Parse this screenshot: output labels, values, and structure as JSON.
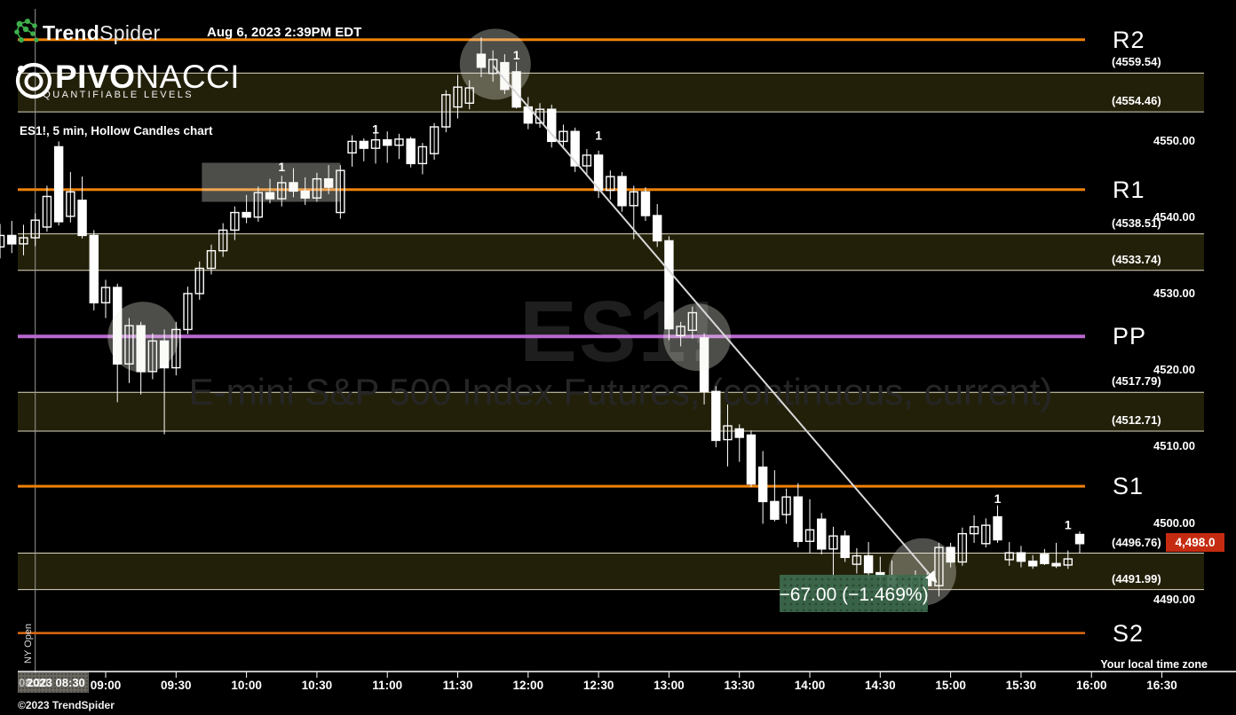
{
  "header": {
    "brand_bold": "Trend",
    "brand_light": "Spider",
    "datetime": "Aug 6, 2023 2:39PM EDT",
    "pivonacci_bold": "PIVO",
    "pivonacci_light": "NACCI",
    "pivonacci_tagline": "QUANTIFIABLE LEVELS",
    "symbol_label": "ES1!, 5 min, Hollow Candles chart"
  },
  "watermark": {
    "line1": "ES1!",
    "line2": "E-mini S&P 500 Index Futures, (continuous, current)"
  },
  "footer": {
    "copyright": "©2023 TrendSpider",
    "timezone_note": "Your local time zone",
    "crosshair_date": "2023 08:30",
    "crosshair_ghost": "08:30",
    "ny_open_label": "NY Open"
  },
  "colors": {
    "background": "#000000",
    "candle": "#ffffff",
    "pivot_orange": "#ef8109",
    "pivot_orange_s2": "#e06a10",
    "pivot_purple": "#b968cf",
    "band_fill": "#23200a",
    "band_edge": "#e8e2cc",
    "badge_red": "#c52b10",
    "annotation_green": "#3d6b4d",
    "brand_green": "#3faf4c",
    "trendline": "#d8d8d8",
    "highlight": "rgba(238,238,230,0.32)"
  },
  "chart_data": {
    "type": "candlestick-hollow",
    "title": "ES1!, 5 min, Hollow Candles chart",
    "symbol": "ES1!",
    "interval": "5 min",
    "last_price": "4,498.0",
    "change_label": "−67.00 (−1.469%)",
    "x_axis": {
      "labels": [
        "08:30",
        "09:00",
        "09:30",
        "10:00",
        "10:30",
        "11:00",
        "11:30",
        "12:00",
        "12:30",
        "13:00",
        "13:30",
        "14:00",
        "14:30",
        "15:00",
        "15:30",
        "16:00",
        "16:30"
      ],
      "note": "Your local time zone"
    },
    "y_axis": {
      "labels": [
        "4550.00",
        "4540.00",
        "4530.00",
        "4520.00",
        "4510.00",
        "4500.00",
        "4490.00"
      ],
      "range": [
        4480,
        4570
      ],
      "grid": false
    },
    "pivots": [
      {
        "name": "R2",
        "line_price": 4563.9,
        "zone": [
          4554.46,
          4559.54
        ],
        "zone_labels": [
          "(4559.54)",
          "(4554.46)"
        ],
        "color": "#ef8109",
        "width": 3
      },
      {
        "name": "R1",
        "line_price": 4544.3,
        "zone": [
          4533.74,
          4538.51
        ],
        "zone_labels": [
          "(4538.51)",
          "(4533.74)"
        ],
        "color": "#ef8109",
        "width": 3
      },
      {
        "name": "PP",
        "line_price": 4525.1,
        "zone": [
          4512.71,
          4517.79
        ],
        "zone_labels": [
          "(4517.79)",
          "(4512.71)"
        ],
        "color": "#b968cf",
        "width": 4
      },
      {
        "name": "S1",
        "line_price": 4505.5,
        "zone": [
          4491.99,
          4496.76
        ],
        "zone_labels": [
          "(4496.76)",
          "(4491.99)"
        ],
        "color": "#ef8109",
        "width": 3
      },
      {
        "name": "S2",
        "line_price": 4486.3,
        "zone": null,
        "zone_labels": [],
        "color": "#e06a10",
        "width": 2.5
      }
    ],
    "candles": [
      [
        "08:15",
        4536.8,
        4539.8,
        4535.3,
        4538.3
      ],
      [
        "08:20",
        4538.3,
        4540.2,
        4536.0,
        4537.2
      ],
      [
        "08:25",
        4537.2,
        4539.7,
        4535.7,
        4538.0
      ],
      [
        "08:30",
        4538.0,
        4541.2,
        4536.9,
        4540.3
      ],
      [
        "08:35",
        4539.4,
        4544.8,
        4538.8,
        4543.4
      ],
      [
        "08:40",
        4549.9,
        4550.6,
        4539.6,
        4540.1
      ],
      [
        "08:45",
        4540.8,
        4546.6,
        4540.0,
        4544.0
      ],
      [
        "08:50",
        4542.9,
        4546.0,
        4537.9,
        4538.3
      ],
      [
        "08:55",
        4538.3,
        4539.0,
        4528.5,
        4529.5
      ],
      [
        "09:00",
        4529.5,
        4532.5,
        4527.5,
        4531.5
      ],
      [
        "09:05",
        4531.5,
        4532.0,
        4516.5,
        4521.5
      ],
      [
        "09:10",
        4521.5,
        4527.5,
        4519.0,
        4526.5
      ],
      [
        "09:15",
        4526.5,
        4527.0,
        4517.5,
        4520.5
      ],
      [
        "09:20",
        4520.5,
        4525.5,
        4519.5,
        4524.5
      ],
      [
        "09:25",
        4524.5,
        4526.0,
        4512.3,
        4521.0
      ],
      [
        "09:30",
        4521.0,
        4527.0,
        4520.0,
        4526.0
      ],
      [
        "09:35",
        4526.0,
        4531.6,
        4525.4,
        4530.7
      ],
      [
        "09:40",
        4530.7,
        4534.9,
        4529.9,
        4534.0
      ],
      [
        "09:45",
        4534.0,
        4537.1,
        4533.2,
        4536.3
      ],
      [
        "09:50",
        4536.3,
        4539.9,
        4535.5,
        4539.0
      ],
      [
        "09:55",
        4539.0,
        4542.1,
        4537.7,
        4541.3
      ],
      [
        "10:00",
        4541.3,
        4543.6,
        4539.9,
        4540.7
      ],
      [
        "10:05",
        4540.7,
        4544.7,
        4540.1,
        4543.9
      ],
      [
        "10:10",
        4543.9,
        4545.7,
        4542.5,
        4543.1
      ],
      [
        "10:15",
        4543.1,
        4546.1,
        4542.1,
        4545.2
      ],
      [
        "10:20",
        4545.2,
        4547.1,
        4543.3,
        4544.1
      ],
      [
        "10:25",
        4544.1,
        4545.9,
        4542.3,
        4543.2
      ],
      [
        "10:30",
        4543.2,
        4546.5,
        4542.7,
        4545.7
      ],
      [
        "10:35",
        4545.7,
        4547.5,
        4543.7,
        4544.6
      ],
      [
        "10:40",
        4541.3,
        4547.5,
        4540.5,
        4546.8
      ],
      [
        "10:45",
        4549.1,
        4551.4,
        4547.3,
        4550.6
      ],
      [
        "10:50",
        4550.6,
        4551.0,
        4548.0,
        4549.7
      ],
      [
        "10:55",
        4549.7,
        4551.9,
        4547.7,
        4550.8
      ],
      [
        "11:00",
        4550.8,
        4551.9,
        4547.8,
        4550.1
      ],
      [
        "11:05",
        4550.1,
        4551.6,
        4548.3,
        4550.9
      ],
      [
        "11:10",
        4550.9,
        4551.2,
        4547.2,
        4547.7
      ],
      [
        "11:15",
        4547.7,
        4550.4,
        4546.3,
        4549.9
      ],
      [
        "11:20",
        4549.0,
        4553.0,
        4548.2,
        4552.5
      ],
      [
        "11:25",
        4552.5,
        4557.3,
        4551.8,
        4556.7
      ],
      [
        "11:30",
        4555.1,
        4559.3,
        4553.6,
        4557.7
      ],
      [
        "11:35",
        4555.6,
        4558.6,
        4554.8,
        4557.6
      ],
      [
        "11:40",
        4562.0,
        4564.2,
        4559.0,
        4560.3
      ],
      [
        "11:45",
        4559.5,
        4562.5,
        4558.4,
        4561.3
      ],
      [
        "11:50",
        4560.9,
        4562.0,
        4556.8,
        4557.4
      ],
      [
        "11:55",
        4559.7,
        4561.0,
        4554.9,
        4555.1
      ],
      [
        "12:00",
        4555.1,
        4556.4,
        4552.2,
        4553.0
      ],
      [
        "12:05",
        4553.0,
        4555.6,
        4552.4,
        4554.8
      ],
      [
        "12:10",
        4554.8,
        4555.4,
        4549.8,
        4550.6
      ],
      [
        "12:15",
        4550.6,
        4552.8,
        4549.6,
        4551.9
      ],
      [
        "12:20",
        4551.9,
        4552.4,
        4546.6,
        4547.4
      ],
      [
        "12:25",
        4547.4,
        4549.6,
        4546.2,
        4548.8
      ],
      [
        "12:30",
        4548.8,
        4549.4,
        4543.2,
        4544.2
      ],
      [
        "12:35",
        4544.2,
        4546.8,
        4543.0,
        4546.0
      ],
      [
        "12:40",
        4546.0,
        4546.6,
        4541.4,
        4542.2
      ],
      [
        "12:45",
        4542.2,
        4544.8,
        4537.8,
        4544.0
      ],
      [
        "12:50",
        4544.0,
        4544.6,
        4540.2,
        4540.9
      ],
      [
        "12:55",
        4540.9,
        4542.4,
        4536.8,
        4537.6
      ],
      [
        "13:00",
        4537.6,
        4538.2,
        4524.6,
        4526.1
      ],
      [
        "13:05",
        4525.2,
        4527.0,
        4523.8,
        4526.4
      ],
      [
        "13:10",
        4525.9,
        4529.0,
        4524.8,
        4528.2
      ],
      [
        "13:15",
        4524.9,
        4525.5,
        4516.2,
        4517.9
      ],
      [
        "13:20",
        4517.9,
        4518.6,
        4510.6,
        4511.5
      ],
      [
        "13:25",
        4511.6,
        4516.2,
        4508.1,
        4513.4
      ],
      [
        "13:30",
        4513.0,
        4513.6,
        4508.7,
        4511.9
      ],
      [
        "13:35",
        4512.2,
        4512.8,
        4505.4,
        4505.8
      ],
      [
        "13:40",
        4508.0,
        4510.1,
        4500.6,
        4503.5
      ],
      [
        "13:45",
        4503.5,
        4507.6,
        4500.9,
        4501.2
      ],
      [
        "13:50",
        4501.8,
        4505.2,
        4500.6,
        4504.1
      ],
      [
        "13:55",
        4504.1,
        4505.9,
        4497.5,
        4498.3
      ],
      [
        "14:00",
        4498.3,
        4503.8,
        4496.8,
        4499.8
      ],
      [
        "14:05",
        4501.2,
        4502.0,
        4496.6,
        4497.3
      ],
      [
        "14:10",
        4497.3,
        4500.2,
        4493.4,
        4499.0
      ],
      [
        "14:15",
        4499.0,
        4499.7,
        4495.6,
        4496.2
      ],
      [
        "14:20",
        4495.3,
        4497.4,
        4494.1,
        4496.4
      ],
      [
        "14:25",
        4496.4,
        4498.2,
        4493.4,
        4494.2
      ],
      [
        "14:30",
        4494.2,
        4496.3,
        4491.9,
        4493.8
      ],
      [
        "14:35",
        4493.8,
        4495.8,
        4491.5,
        4492.5
      ],
      [
        "14:40",
        4492.5,
        4493.5,
        4490.3,
        4491.3
      ],
      [
        "14:45",
        4491.3,
        4494.5,
        4489.8,
        4493.7
      ],
      [
        "14:50",
        4493.7,
        4494.3,
        4490.5,
        4492.5
      ],
      [
        "14:55",
        4492.5,
        4498.1,
        4491.1,
        4497.5
      ],
      [
        "15:00",
        4497.5,
        4498.1,
        4494.9,
        4495.6
      ],
      [
        "15:05",
        4495.6,
        4500.1,
        4495.1,
        4499.3
      ],
      [
        "15:10",
        4499.3,
        4501.7,
        4498.1,
        4500.2
      ],
      [
        "15:15",
        4498.0,
        4501.3,
        4497.5,
        4500.4
      ],
      [
        "15:20",
        4501.5,
        4503.0,
        4498.1,
        4498.5
      ],
      [
        "15:25",
        4495.9,
        4498.2,
        4495.1,
        4496.8
      ],
      [
        "15:30",
        4496.8,
        4497.7,
        4494.9,
        4495.7
      ],
      [
        "15:35",
        4495.7,
        4496.5,
        4494.7,
        4495.1
      ],
      [
        "15:40",
        4496.6,
        4497.3,
        4495.2,
        4495.4
      ],
      [
        "15:45",
        4495.4,
        4498.1,
        4494.8,
        4495.1
      ],
      [
        "15:50",
        4495.2,
        4497.1,
        4494.7,
        4496.0
      ],
      [
        "15:55",
        4499.2,
        4499.6,
        4496.7,
        4498.0
      ]
    ],
    "markers": [
      {
        "time": "10:15",
        "price": 4547.3,
        "label": "1"
      },
      {
        "time": "10:55",
        "price": 4552.2,
        "label": "1"
      },
      {
        "time": "11:55",
        "price": 4561.9,
        "label": "1"
      },
      {
        "time": "12:30",
        "price": 4551.4,
        "label": "1"
      },
      {
        "time": "15:20",
        "price": 4503.9,
        "label": "1"
      },
      {
        "time": "15:50",
        "price": 4500.5,
        "label": "1"
      }
    ],
    "trendline": {
      "from": {
        "time": "11:45",
        "price": 4560.5
      },
      "to": {
        "time": "14:51",
        "price": 4494.0
      }
    },
    "highlights": {
      "circles": [
        {
          "time": "09:16",
          "price": 4525.0,
          "r": 40
        },
        {
          "time": "11:46",
          "price": 4560.7,
          "r": 40
        },
        {
          "time": "13:12",
          "price": 4525.0,
          "r": 38
        },
        {
          "time": "14:48",
          "price": 4494.3,
          "r": 38
        }
      ],
      "box": {
        "t1": "09:41",
        "t2": "10:40",
        "p1": 4547.8,
        "p2": 4542.7
      }
    },
    "ny_open_time": "08:30"
  }
}
